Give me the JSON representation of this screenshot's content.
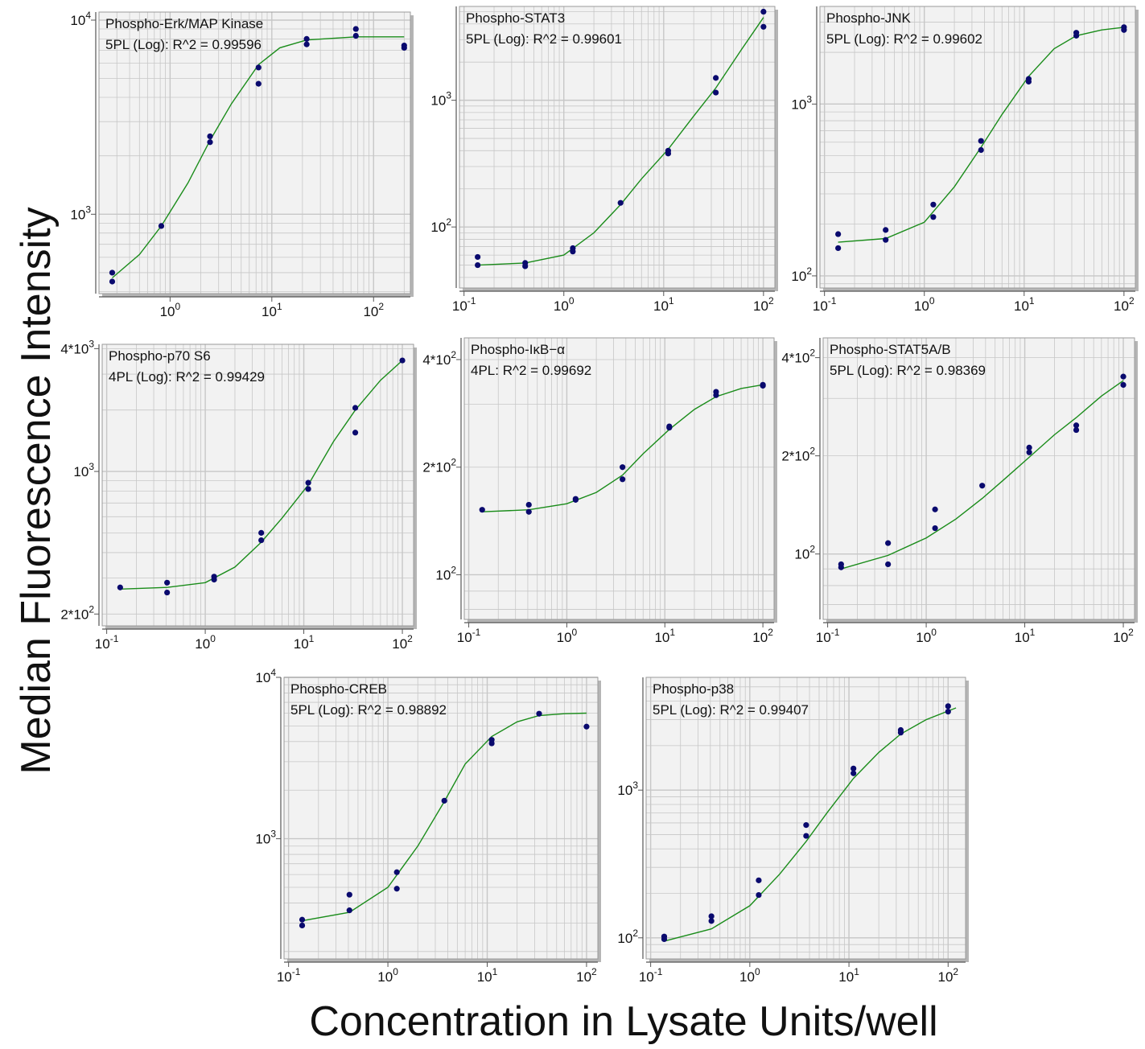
{
  "figure": {
    "ylabel": "Median Fluorescence Intensity",
    "xlabel": "Concentration in Lysate Units/well"
  },
  "colors": {
    "panel": "#f2f2f2",
    "grid": "#c7c7c7",
    "curve": "#1a8c1a",
    "point": "#0a0a6e",
    "axis": "#555555"
  },
  "chart_data": [
    {
      "type": "scatter",
      "scale": "log-log",
      "title": "Phospho-Erk/MAP Kinase",
      "fit": "5PL (Log): R^2 = 0.99596",
      "xlim": [
        0.2,
        230
      ],
      "ylim": [
        390,
        11000
      ],
      "xticks": [
        {
          "v": 1,
          "m": "10",
          "e": "0"
        },
        {
          "v": 10,
          "m": "10",
          "e": "1"
        },
        {
          "v": 100,
          "m": "10",
          "e": "2"
        }
      ],
      "yticks": [
        {
          "v": 1000,
          "m": "10",
          "e": "3"
        },
        {
          "v": 10000,
          "m": "10",
          "e": "4"
        }
      ],
      "points": [
        [
          0.27,
          500
        ],
        [
          0.27,
          450
        ],
        [
          0.82,
          870
        ],
        [
          2.47,
          2520
        ],
        [
          2.47,
          2350
        ],
        [
          7.4,
          5700
        ],
        [
          7.4,
          4700
        ],
        [
          22,
          8000
        ],
        [
          22,
          7500
        ],
        [
          67,
          9000
        ],
        [
          67,
          8300
        ],
        [
          200,
          7400
        ],
        [
          200,
          7200
        ]
      ],
      "curve": [
        [
          0.27,
          470
        ],
        [
          0.5,
          620
        ],
        [
          0.82,
          870
        ],
        [
          1.5,
          1450
        ],
        [
          2.47,
          2400
        ],
        [
          4,
          3700
        ],
        [
          7.4,
          5900
        ],
        [
          12,
          7200
        ],
        [
          22,
          7900
        ],
        [
          67,
          8200
        ],
        [
          200,
          8200
        ]
      ]
    },
    {
      "type": "scatter",
      "scale": "log-log",
      "title": "Phospho-STAT3",
      "fit": "5PL (Log): R^2 = 0.99601",
      "xlim": [
        0.09,
        130
      ],
      "ylim": [
        33,
        5500
      ],
      "xticks": [
        {
          "v": 0.1,
          "m": "10",
          "e": "-1"
        },
        {
          "v": 1,
          "m": "10",
          "e": "0"
        },
        {
          "v": 10,
          "m": "10",
          "e": "1"
        },
        {
          "v": 100,
          "m": "10",
          "e": "2"
        }
      ],
      "yticks": [
        {
          "v": 100,
          "m": "10",
          "e": "2"
        },
        {
          "v": 1000,
          "m": "10",
          "e": "3"
        }
      ],
      "points": [
        [
          0.137,
          58
        ],
        [
          0.137,
          50
        ],
        [
          0.41,
          52
        ],
        [
          0.41,
          49
        ],
        [
          1.23,
          68
        ],
        [
          1.23,
          64
        ],
        [
          3.7,
          155
        ],
        [
          11.1,
          400
        ],
        [
          11.1,
          380
        ],
        [
          33.3,
          1500
        ],
        [
          33.3,
          1150
        ],
        [
          100,
          5000
        ],
        [
          100,
          3800
        ]
      ],
      "curve": [
        [
          0.137,
          50
        ],
        [
          0.41,
          52
        ],
        [
          1,
          60
        ],
        [
          2,
          90
        ],
        [
          3.7,
          150
        ],
        [
          6,
          240
        ],
        [
          11.1,
          410
        ],
        [
          20,
          750
        ],
        [
          33.3,
          1250
        ],
        [
          60,
          2500
        ],
        [
          100,
          4500
        ]
      ]
    },
    {
      "type": "scatter",
      "scale": "log-log",
      "title": "Phospho-JNK",
      "fit": "5PL (Log): R^2 = 0.99602",
      "xlim": [
        0.09,
        130
      ],
      "ylim": [
        85,
        3700
      ],
      "xticks": [
        {
          "v": 0.1,
          "m": "10",
          "e": "-1"
        },
        {
          "v": 1,
          "m": "10",
          "e": "0"
        },
        {
          "v": 10,
          "m": "10",
          "e": "1"
        },
        {
          "v": 100,
          "m": "10",
          "e": "2"
        }
      ],
      "yticks": [
        {
          "v": 100,
          "m": "10",
          "e": "2"
        },
        {
          "v": 1000,
          "m": "10",
          "e": "3"
        }
      ],
      "points": [
        [
          0.137,
          175
        ],
        [
          0.137,
          145
        ],
        [
          0.41,
          185
        ],
        [
          0.41,
          162
        ],
        [
          1.23,
          260
        ],
        [
          1.23,
          220
        ],
        [
          3.7,
          610
        ],
        [
          3.7,
          540
        ],
        [
          11.1,
          1400
        ],
        [
          11.1,
          1350
        ],
        [
          33.3,
          2600
        ],
        [
          33.3,
          2500
        ],
        [
          100,
          2800
        ],
        [
          100,
          2700
        ]
      ],
      "curve": [
        [
          0.137,
          157
        ],
        [
          0.41,
          165
        ],
        [
          1,
          205
        ],
        [
          2,
          330
        ],
        [
          3.7,
          560
        ],
        [
          6,
          870
        ],
        [
          11.1,
          1450
        ],
        [
          20,
          2100
        ],
        [
          33.3,
          2500
        ],
        [
          60,
          2700
        ],
        [
          100,
          2800
        ]
      ]
    },
    {
      "type": "scatter",
      "scale": "log-log",
      "title": "Phospho-p70 S6",
      "fit": "4PL (Log): R^2 = 0.99429",
      "xlim": [
        0.09,
        130
      ],
      "ylim": [
        175,
        4200
      ],
      "xticks": [
        {
          "v": 0.1,
          "m": "10",
          "e": "-1"
        },
        {
          "v": 1,
          "m": "10",
          "e": "0"
        },
        {
          "v": 10,
          "m": "10",
          "e": "1"
        },
        {
          "v": 100,
          "m": "10",
          "e": "2"
        }
      ],
      "yticks": [
        {
          "v": 200,
          "m": "2*10",
          "e": "2"
        },
        {
          "v": 1000,
          "m": "10",
          "e": "3"
        },
        {
          "v": 4000,
          "m": "4*10",
          "e": "3"
        }
      ],
      "points": [
        [
          0.137,
          270
        ],
        [
          0.41,
          285
        ],
        [
          0.41,
          255
        ],
        [
          1.23,
          305
        ],
        [
          1.23,
          295
        ],
        [
          3.7,
          500
        ],
        [
          3.7,
          460
        ],
        [
          11.1,
          880
        ],
        [
          11.1,
          820
        ],
        [
          33.3,
          2050
        ],
        [
          33.3,
          1550
        ],
        [
          100,
          3500
        ]
      ],
      "curve": [
        [
          0.137,
          265
        ],
        [
          0.41,
          270
        ],
        [
          1,
          285
        ],
        [
          2,
          340
        ],
        [
          3.7,
          450
        ],
        [
          6,
          590
        ],
        [
          11.1,
          860
        ],
        [
          20,
          1400
        ],
        [
          33.3,
          2000
        ],
        [
          60,
          2800
        ],
        [
          100,
          3500
        ]
      ]
    },
    {
      "type": "scatter",
      "scale": "log-log",
      "title": "Phospho-IκB−α",
      "fit": "4PL: R^2 = 0.99692",
      "xlim": [
        0.09,
        130
      ],
      "ylim": [
        75,
        460
      ],
      "xticks": [
        {
          "v": 0.1,
          "m": "10",
          "e": "-1"
        },
        {
          "v": 1,
          "m": "10",
          "e": "0"
        },
        {
          "v": 10,
          "m": "10",
          "e": "1"
        },
        {
          "v": 100,
          "m": "10",
          "e": "2"
        }
      ],
      "yticks": [
        {
          "v": 100,
          "m": "10",
          "e": "2"
        },
        {
          "v": 200,
          "m": "2*10",
          "e": "2"
        },
        {
          "v": 400,
          "m": "4*10",
          "e": "2"
        }
      ],
      "points": [
        [
          0.137,
          152
        ],
        [
          0.41,
          157
        ],
        [
          0.41,
          150
        ],
        [
          1.23,
          163
        ],
        [
          1.23,
          162
        ],
        [
          3.7,
          200
        ],
        [
          3.7,
          185
        ],
        [
          11.1,
          260
        ],
        [
          11.1,
          258
        ],
        [
          33.3,
          325
        ],
        [
          33.3,
          318
        ],
        [
          100,
          340
        ],
        [
          100,
          338
        ]
      ],
      "curve": [
        [
          0.137,
          150
        ],
        [
          0.41,
          152
        ],
        [
          1,
          158
        ],
        [
          2,
          170
        ],
        [
          3.7,
          190
        ],
        [
          6,
          218
        ],
        [
          11.1,
          255
        ],
        [
          20,
          290
        ],
        [
          33.3,
          315
        ],
        [
          60,
          332
        ],
        [
          100,
          340
        ]
      ]
    },
    {
      "type": "scatter",
      "scale": "log-log",
      "title": "Phospho-STAT5A/B",
      "fit": "5PL (Log): R^2 = 0.98369",
      "xlim": [
        0.09,
        130
      ],
      "ylim": [
        63,
        460
      ],
      "xticks": [
        {
          "v": 0.1,
          "m": "10",
          "e": "-1"
        },
        {
          "v": 1,
          "m": "10",
          "e": "0"
        },
        {
          "v": 10,
          "m": "10",
          "e": "1"
        },
        {
          "v": 100,
          "m": "10",
          "e": "2"
        }
      ],
      "yticks": [
        {
          "v": 100,
          "m": "10",
          "e": "2"
        },
        {
          "v": 200,
          "m": "2*10",
          "e": "2"
        },
        {
          "v": 400,
          "m": "4*10",
          "e": "2"
        }
      ],
      "points": [
        [
          0.137,
          93
        ],
        [
          0.137,
          91
        ],
        [
          0.41,
          108
        ],
        [
          0.41,
          93
        ],
        [
          1.23,
          137
        ],
        [
          1.23,
          120
        ],
        [
          3.7,
          162
        ],
        [
          11.1,
          212
        ],
        [
          11.1,
          205
        ],
        [
          33.3,
          248
        ],
        [
          33.3,
          240
        ],
        [
          100,
          350
        ],
        [
          100,
          330
        ]
      ],
      "curve": [
        [
          0.137,
          90
        ],
        [
          0.41,
          99
        ],
        [
          1,
          112
        ],
        [
          2,
          128
        ],
        [
          3.7,
          148
        ],
        [
          6,
          168
        ],
        [
          11.1,
          198
        ],
        [
          20,
          232
        ],
        [
          33.3,
          262
        ],
        [
          60,
          305
        ],
        [
          100,
          340
        ]
      ]
    },
    {
      "type": "scatter",
      "scale": "log-log",
      "title": "Phospho-CREB",
      "fit": "5PL (Log): R^2 = 0.98892",
      "xlim": [
        0.09,
        130
      ],
      "ylim": [
        180,
        10000
      ],
      "xticks": [
        {
          "v": 0.1,
          "m": "10",
          "e": "-1"
        },
        {
          "v": 1,
          "m": "10",
          "e": "0"
        },
        {
          "v": 10,
          "m": "10",
          "e": "1"
        },
        {
          "v": 100,
          "m": "10",
          "e": "2"
        }
      ],
      "yticks": [
        {
          "v": 1000,
          "m": "10",
          "e": "3"
        },
        {
          "v": 10000,
          "m": "10",
          "e": "4"
        }
      ],
      "points": [
        [
          0.137,
          315
        ],
        [
          0.137,
          290
        ],
        [
          0.41,
          450
        ],
        [
          0.41,
          360
        ],
        [
          1.23,
          620
        ],
        [
          1.23,
          490
        ],
        [
          3.7,
          1720
        ],
        [
          11.1,
          4100
        ],
        [
          11.1,
          3900
        ],
        [
          33.3,
          5950
        ],
        [
          100,
          4950
        ]
      ],
      "curve": [
        [
          0.137,
          310
        ],
        [
          0.41,
          350
        ],
        [
          1,
          500
        ],
        [
          2,
          900
        ],
        [
          3.7,
          1700
        ],
        [
          6,
          2900
        ],
        [
          11.1,
          4300
        ],
        [
          20,
          5300
        ],
        [
          33.3,
          5800
        ],
        [
          60,
          5950
        ],
        [
          100,
          6000
        ]
      ]
    },
    {
      "type": "scatter",
      "scale": "log-log",
      "title": "Phospho-p38",
      "fit": "5PL (Log): R^2 = 0.99407",
      "xlim": [
        0.09,
        150
      ],
      "ylim": [
        72,
        5800
      ],
      "xticks": [
        {
          "v": 0.1,
          "m": "10",
          "e": "-1"
        },
        {
          "v": 1,
          "m": "10",
          "e": "0"
        },
        {
          "v": 10,
          "m": "10",
          "e": "1"
        },
        {
          "v": 100,
          "m": "10",
          "e": "2"
        }
      ],
      "yticks": [
        {
          "v": 100,
          "m": "10",
          "e": "2"
        },
        {
          "v": 1000,
          "m": "10",
          "e": "3"
        }
      ],
      "points": [
        [
          0.137,
          102
        ],
        [
          0.137,
          98
        ],
        [
          0.41,
          140
        ],
        [
          0.41,
          130
        ],
        [
          1.23,
          245
        ],
        [
          1.23,
          195
        ],
        [
          3.7,
          580
        ],
        [
          3.7,
          490
        ],
        [
          11.1,
          1400
        ],
        [
          11.1,
          1300
        ],
        [
          33.3,
          2550
        ],
        [
          33.3,
          2450
        ],
        [
          100,
          3700
        ],
        [
          100,
          3400
        ]
      ],
      "curve": [
        [
          0.137,
          95
        ],
        [
          0.41,
          115
        ],
        [
          1,
          165
        ],
        [
          2,
          270
        ],
        [
          3.7,
          450
        ],
        [
          6,
          700
        ],
        [
          11.1,
          1200
        ],
        [
          20,
          1800
        ],
        [
          33.3,
          2400
        ],
        [
          60,
          3000
        ],
        [
          120,
          3600
        ]
      ]
    }
  ]
}
